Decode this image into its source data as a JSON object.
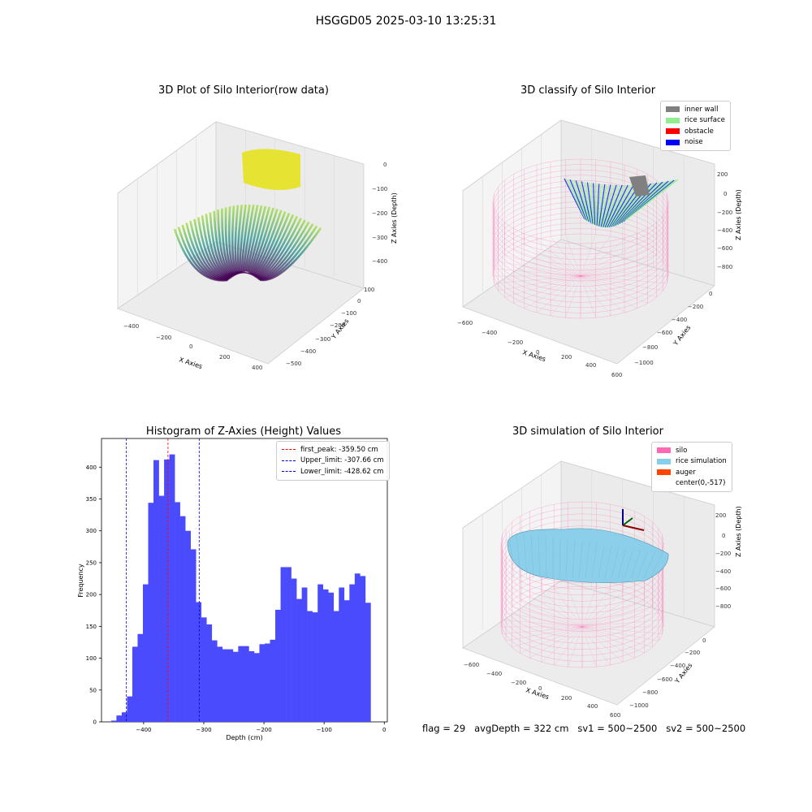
{
  "suptitle": "HSGGD05 2025-03-10 13:25:31",
  "footer": "flag = 29   avgDepth = 322 cm   sv1 = 500~2500   sv2 = 500~2500",
  "colors": {
    "hist_bar": "#4b4bfe",
    "first_peak": "#ff0000",
    "limit_line": "#0000cc",
    "silo": "#ff69b4",
    "rice_simulation": "#87ceeb",
    "auger": "#ff4500",
    "inner_wall": "#808080",
    "rice_surface": "#90ee90",
    "obstacle": "#ff0000",
    "noise": "#0000ff"
  },
  "chart_data": [
    {
      "type": "scatter",
      "title": "3D Plot of Silo Interior(row data)",
      "xlabel": "X Axies",
      "ylabel": "Y Axies",
      "zlabel": "Z Axies (Depth)",
      "x_ticks": [
        "−400",
        "−200",
        "0",
        "200",
        "400"
      ],
      "y_ticks": [
        "100",
        "0",
        "−100",
        "−200",
        "−300",
        "−400",
        "−500"
      ],
      "z_ticks": [
        "0",
        "−100",
        "−200",
        "−300",
        "−400"
      ],
      "xlim": [
        -450,
        450
      ],
      "ylim": [
        -520,
        120
      ],
      "zlim": [
        -450,
        10
      ]
    },
    {
      "type": "scatter",
      "title": "3D classify of Silo Interior",
      "xlabel": "X Axies",
      "ylabel": "Y Axies",
      "zlabel": "Z Axies (Depth)",
      "x_ticks": [
        "−600",
        "−400",
        "−200",
        "0",
        "200",
        "400",
        "600"
      ],
      "y_ticks": [
        "0",
        "−200",
        "−400",
        "−600",
        "−800",
        "−1000"
      ],
      "z_ticks": [
        "200",
        "0",
        "−200",
        "−400",
        "−600",
        "−800"
      ],
      "legend": [
        {
          "label": "inner wall",
          "color": "#808080"
        },
        {
          "label": "rice surface",
          "color": "#90ee90"
        },
        {
          "label": "obstacle",
          "color": "#ff0000"
        },
        {
          "label": "noise",
          "color": "#0000ff"
        }
      ]
    },
    {
      "type": "bar",
      "title": "Histogram of Z-Axies (Height) Values",
      "xlabel": "Depth (cm)",
      "ylabel": "Frequency",
      "xlim": [
        -470,
        5
      ],
      "ylim": [
        0,
        445
      ],
      "x_ticks": [
        -400,
        -300,
        -200,
        -100,
        0
      ],
      "y_ticks": [
        0,
        50,
        100,
        150,
        200,
        250,
        300,
        350,
        400
      ],
      "bin_start": -454,
      "bin_width": 8.8,
      "values": [
        2,
        10,
        15,
        40,
        118,
        138,
        216,
        344,
        411,
        355,
        412,
        420,
        345,
        323,
        300,
        271,
        188,
        164,
        153,
        128,
        118,
        114,
        114,
        110,
        119,
        119,
        111,
        108,
        122,
        123,
        129,
        176,
        243,
        243,
        225,
        193,
        211,
        174,
        172,
        216,
        208,
        203,
        174,
        211,
        191,
        216,
        233,
        229,
        187
      ],
      "lines": [
        {
          "label": "first_peak: -359.50 cm",
          "x": -359.5,
          "color": "#ff0000"
        },
        {
          "label": "Upper_limit: -307.66 cm",
          "x": -307.66,
          "color": "#0000cc"
        },
        {
          "label": "Lower_limit: -428.62 cm",
          "x": -428.62,
          "color": "#0000cc"
        }
      ]
    },
    {
      "type": "scatter",
      "title": "3D simulation of Silo Interior",
      "xlabel": "X Axies",
      "ylabel": "Y Axies",
      "zlabel": "Z Axies (Depth)",
      "x_ticks": [
        "−600",
        "−400",
        "−200",
        "0",
        "200",
        "400",
        "600"
      ],
      "y_ticks": [
        "0",
        "−200",
        "−400",
        "−600",
        "−800",
        "−1000"
      ],
      "z_ticks": [
        "200",
        "0",
        "−200",
        "−400",
        "−600",
        "−800"
      ],
      "legend": [
        {
          "label": "silo",
          "color": "#ff69b4"
        },
        {
          "label": "rice simulation",
          "color": "#87ceeb"
        },
        {
          "label": "auger",
          "color": "#ff4500"
        },
        {
          "label": "center(0,-517)",
          "color": ""
        }
      ]
    }
  ]
}
